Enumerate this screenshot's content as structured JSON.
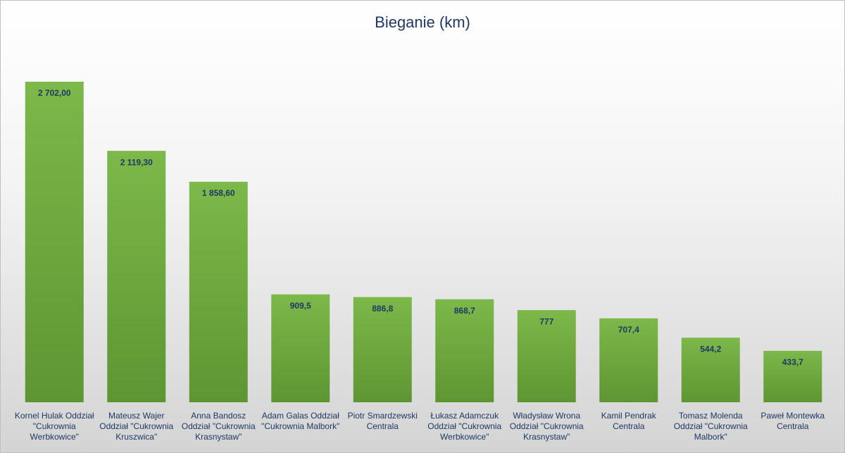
{
  "chart_data": {
    "type": "bar",
    "title": "Bieganie (km)",
    "categories": [
      "Kornel Hulak Oddział \"Cukrownia Werbkowice\"",
      "Mateusz Wajer Oddział \"Cukrownia Kruszwica\"",
      "Anna Bandosz Oddział \"Cukrownia Krasnystaw\"",
      "Adam Galas Oddział \"Cukrownia Malbork\"",
      "Piotr Smardzewski Centrala",
      "Łukasz Adamczuk Oddział \"Cukrownia Werbkowice\"",
      "Władysław Wrona Oddział \"Cukrownia Krasnystaw\"",
      "Kamil Pendrak Centrala",
      "Tomasz Molenda Oddział \"Cukrownia Malbork\"",
      "Paweł Montewka Centrala"
    ],
    "values": [
      2702,
      2119.3,
      1858.6,
      909.5,
      886.8,
      868.7,
      777,
      707.4,
      544.2,
      433.7
    ],
    "value_labels": [
      "2 702,00",
      "2 119,30",
      "1 858,60",
      "909,5",
      "886,8",
      "868,7",
      "777",
      "707,4",
      "544,2",
      "433,7"
    ],
    "color": "#70ad47"
  }
}
